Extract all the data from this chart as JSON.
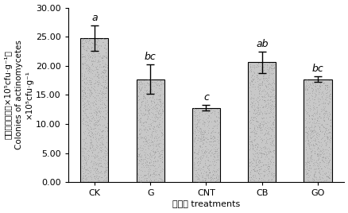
{
  "categories": [
    "CK",
    "G",
    "CNT",
    "CB",
    "GO"
  ],
  "values": [
    24.8,
    17.7,
    12.8,
    20.6,
    17.7
  ],
  "errors": [
    2.2,
    2.5,
    0.5,
    1.8,
    0.5
  ],
  "significance": [
    "a",
    "bc",
    "c",
    "ab",
    "bc"
  ],
  "bar_facecolor": "#c8c8c8",
  "bar_edgecolor": "#000000",
  "ylim": [
    0,
    30
  ],
  "yticks": [
    0.0,
    5.0,
    10.0,
    15.0,
    20.0,
    25.0,
    30.0
  ],
  "ylabel_line1": "放线菌菌落数（×10⁵cfu·g⁻¹）",
  "ylabel_line2": "Colonies of actinomycetes",
  "ylabel_line3": "×10⁵cfu·g⁻¹",
  "xlabel": "处理组 treatments",
  "sig_fontsize": 9,
  "tick_fontsize": 8,
  "label_fontsize": 7.5,
  "bar_width": 0.5
}
